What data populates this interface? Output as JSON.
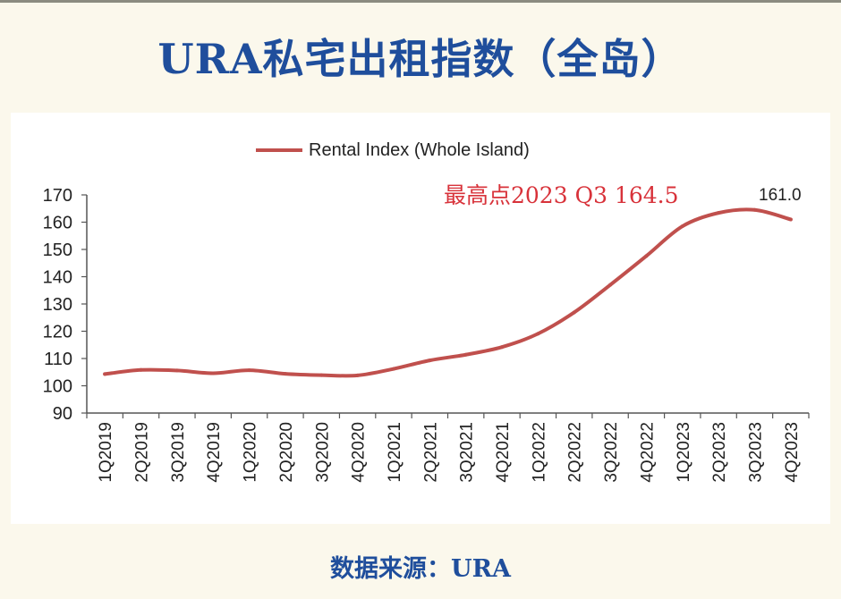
{
  "page": {
    "title": "URA私宅出租指数（全岛）",
    "source": "数据来源：URA"
  },
  "chart_data": {
    "type": "line",
    "title": "URA私宅出租指数（全岛）",
    "xlabel": "",
    "ylabel": "",
    "ylim": [
      90,
      170
    ],
    "yticks": [
      90,
      100,
      110,
      120,
      130,
      140,
      150,
      160,
      170
    ],
    "legend": {
      "placement": "top-center"
    },
    "grid": false,
    "categories": [
      "1Q2019",
      "2Q2019",
      "3Q2019",
      "4Q2019",
      "1Q2020",
      "2Q2020",
      "3Q2020",
      "4Q2020",
      "1Q2021",
      "2Q2021",
      "3Q2021",
      "4Q2021",
      "1Q2022",
      "2Q2022",
      "3Q2022",
      "4Q2022",
      "1Q2023",
      "2Q2023",
      "3Q2023",
      "4Q2023"
    ],
    "series": [
      {
        "name": "Rental Index (Whole Island)",
        "color": "#c0504d",
        "values": [
          104.3,
          105.8,
          105.6,
          104.6,
          105.7,
          104.4,
          103.9,
          103.8,
          106.2,
          109.3,
          111.4,
          114.2,
          119.1,
          126.9,
          137.0,
          147.6,
          158.5,
          163.4,
          164.5,
          161.0
        ]
      }
    ],
    "annotations": {
      "peak_label": "最高点2023 Q3 164.5",
      "peak_color": "#d8323a",
      "last_value_label": "161.0"
    }
  }
}
